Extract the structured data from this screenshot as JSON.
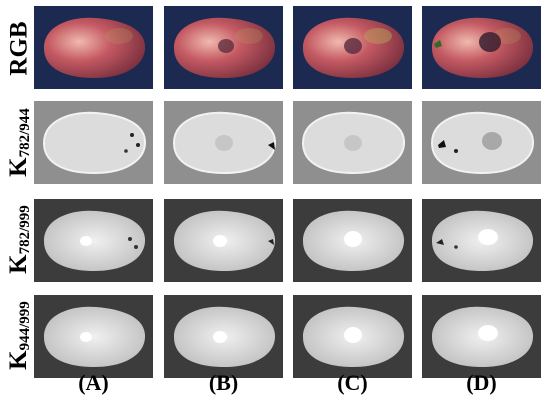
{
  "rows": [
    {
      "name": "RGB",
      "label_main": "RGB",
      "label_sub": ""
    },
    {
      "name": "k782-944",
      "label_main": "K",
      "label_sub": "782/944"
    },
    {
      "name": "k782-999",
      "label_main": "K",
      "label_sub": "782/999"
    },
    {
      "name": "k944-999",
      "label_main": "K",
      "label_sub": "944/999"
    }
  ],
  "columns": [
    {
      "label": "(A)"
    },
    {
      "label": "(B)"
    },
    {
      "label": "(C)"
    },
    {
      "label": "(D)"
    }
  ],
  "colors": {
    "rgb_background": "#1c2a52",
    "fruit_red": "#c45a63",
    "fruit_highlight": "#f0b9ae",
    "fruit_green": "#b9a05a",
    "nir_background": "#8f8f8f",
    "nir_fruit": "#dcdcdc",
    "ratio_background": "#3c3c3c",
    "ratio_fruit": "#e4e4e4"
  }
}
